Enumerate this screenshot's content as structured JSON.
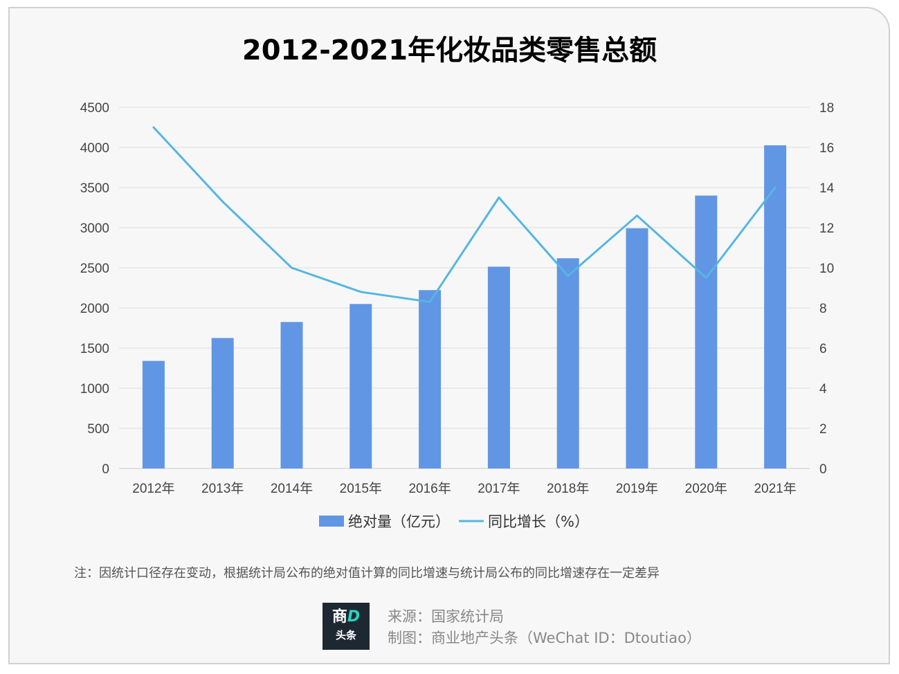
{
  "title": "2012-2021年化妆品类零售总额",
  "chart_data": {
    "type": "bar+line",
    "categories": [
      "2012年",
      "2013年",
      "2014年",
      "2015年",
      "2016年",
      "2017年",
      "2018年",
      "2019年",
      "2020年",
      "2021年"
    ],
    "series": [
      {
        "name": "绝对量（亿元）",
        "type": "bar",
        "axis": "left",
        "color": "#6196e4",
        "values": [
          1340,
          1625,
          1825,
          2049,
          2222,
          2514,
          2619,
          2992,
          3400,
          4026
        ]
      },
      {
        "name": "同比增长（%）",
        "type": "line",
        "axis": "right",
        "color": "#55b6e2",
        "values": [
          17.0,
          13.3,
          10.0,
          8.8,
          8.3,
          13.5,
          9.6,
          12.6,
          9.5,
          14.0
        ]
      }
    ],
    "y_left": {
      "min": 0,
      "max": 4500,
      "ticks": [
        0,
        500,
        1000,
        1500,
        2000,
        2500,
        3000,
        3500,
        4000,
        4500
      ]
    },
    "y_right": {
      "min": 0,
      "max": 18,
      "ticks": [
        0,
        2,
        4,
        6,
        8,
        10,
        12,
        14,
        16,
        18
      ]
    },
    "grid": true,
    "legend_position": "bottom"
  },
  "note": "注：因统计口径存在变动，根据统计局公布的绝对值计算的同比增速与统计局公布的同比增速存在一定差异",
  "source": "来源：国家统计局",
  "credit": "制图：商业地产头条（WeChat ID：Dtoutiao）",
  "logo": {
    "top_text": "商",
    "accent_text": "D",
    "bottom_text": "头条"
  }
}
